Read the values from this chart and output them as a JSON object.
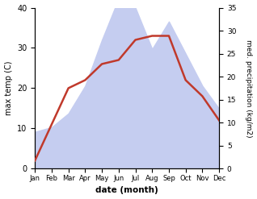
{
  "months": [
    "Jan",
    "Feb",
    "Mar",
    "Apr",
    "May",
    "Jun",
    "Jul",
    "Aug",
    "Sep",
    "Oct",
    "Nov",
    "Dec"
  ],
  "temperature": [
    2,
    11,
    20,
    22,
    26,
    27,
    32,
    33,
    33,
    22,
    18,
    12
  ],
  "precipitation": [
    8,
    9,
    12,
    18,
    28,
    37,
    35,
    26,
    32,
    25,
    18,
    13
  ],
  "temp_color": "#c0392b",
  "precip_fill_color": "#c5cdf0",
  "ylabel_left": "max temp (C)",
  "ylabel_right": "med. precipitation (kg/m2)",
  "xlabel": "date (month)",
  "ylim_left": [
    0,
    40
  ],
  "ylim_right": [
    0,
    35
  ],
  "yticks_left": [
    0,
    10,
    20,
    30,
    40
  ],
  "yticks_right": [
    0,
    5,
    10,
    15,
    20,
    25,
    30,
    35
  ]
}
